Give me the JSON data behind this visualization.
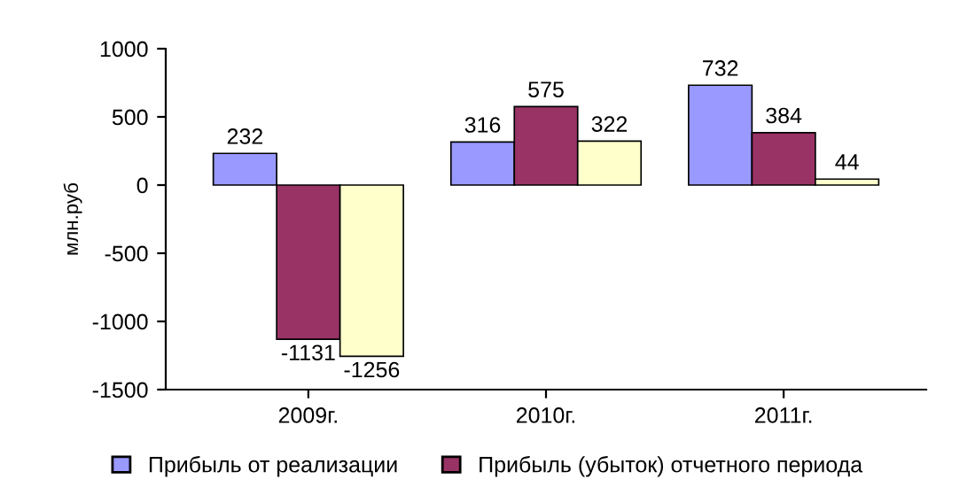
{
  "chart_data": {
    "type": "bar",
    "ylabel": "млн.руб",
    "categories": [
      "2009г.",
      "2010г.",
      "2011г."
    ],
    "series": [
      {
        "name": "Прибыль от реализации",
        "color": "#9999ff",
        "values": [
          232,
          316,
          732
        ]
      },
      {
        "name": "Прибыль (убыток) отчетного периода",
        "color": "#993366",
        "values": [
          -1131,
          575,
          384
        ]
      },
      {
        "color": "#ffffcc",
        "values": [
          -1256,
          322,
          44
        ]
      }
    ],
    "ylim": [
      -1500,
      1000
    ],
    "yticks": [
      -1500,
      -1000,
      -500,
      0,
      500,
      1000
    ],
    "grid": false,
    "legend": "bottom",
    "data_labels": true
  }
}
